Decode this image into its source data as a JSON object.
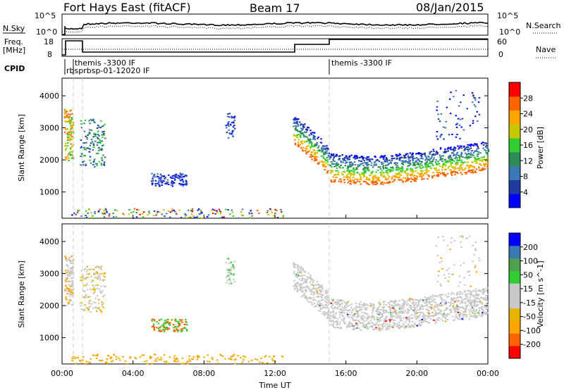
{
  "header": {
    "site": "Fort Hays East (fitACF)",
    "beam": "Beam 17",
    "date": "08/Jan/2015"
  },
  "top_panels": {
    "nsky_label": "N.Sky",
    "nsearch_label": "N.Search",
    "nsky_ticks": [
      "10^5",
      "10^0"
    ],
    "nsearch_ticks": [
      "10^5",
      "10^0"
    ],
    "freq_label": "Freq.",
    "freq_unit": "[MHz]",
    "freq_ticks": [
      "18",
      "8"
    ],
    "nave_label": "Nave",
    "nave_ticks": [
      "60",
      "0"
    ],
    "cpid_label": "CPID",
    "cpid_text_1": "themis -3300 IF",
    "cpid_text_2": "rbsprbsp-01-12020 IF",
    "cpid_text_3": "themis -3300 IF"
  },
  "colors": {
    "power": [
      "#0000ff",
      "#1e3ca0",
      "#3c78b4",
      "#2e8b57",
      "#32cd32",
      "#c8c800",
      "#ffa500",
      "#ff6400",
      "#ff0000"
    ],
    "velocity": [
      "#ff0000",
      "#ff6400",
      "#ffa500",
      "#e6b400",
      "#c8c8c8",
      "#c8c8c8",
      "#32cd32",
      "#50a050",
      "#3c78b4",
      "#0000ff"
    ]
  },
  "chart_data": [
    {
      "type": "heatmap",
      "title": "",
      "xlabel": "",
      "ylabel": "Slant Range [km]",
      "xlim": [
        "00:00",
        "24:00"
      ],
      "ylim": [
        180,
        4550
      ],
      "x_ticks": [
        "00:00",
        "04:00",
        "08:00",
        "12:00",
        "16:00",
        "20:00",
        "00:00"
      ],
      "y_ticks": [
        "1000",
        "2000",
        "3000",
        "4000"
      ],
      "colorbar_label": "Power [dB]",
      "colorbar_ticks": [
        "4",
        "8",
        "12",
        "16",
        "20",
        "24",
        "28"
      ],
      "colorbar_range": [
        0,
        30
      ],
      "grid": false
    },
    {
      "type": "heatmap",
      "title": "",
      "xlabel": "Time UT",
      "ylabel": "Slant Range [km]",
      "xlim": [
        "00:00",
        "24:00"
      ],
      "ylim": [
        180,
        4550
      ],
      "x_ticks": [
        "00:00",
        "04:00",
        "08:00",
        "12:00",
        "16:00",
        "20:00",
        "00:00"
      ],
      "y_ticks": [
        "1000",
        "2000",
        "3000",
        "4000"
      ],
      "colorbar_label": "Velocity [m s^-1]",
      "colorbar_ticks": [
        "-200",
        "-100",
        "-50",
        "-15",
        "15",
        "50",
        "100",
        "200"
      ],
      "colorbar_range": [
        -250,
        250
      ],
      "grid": false
    }
  ]
}
